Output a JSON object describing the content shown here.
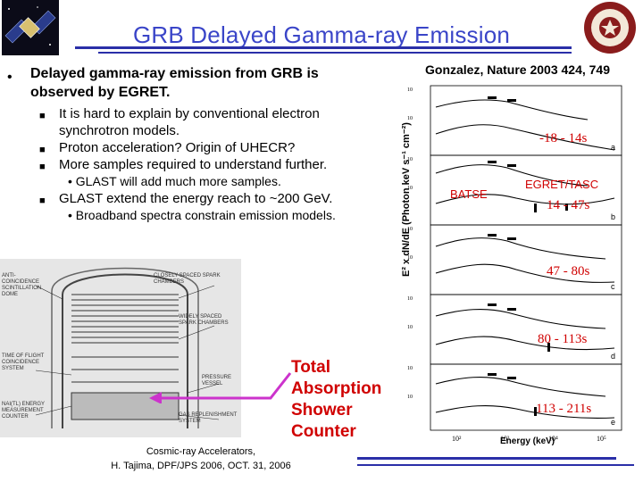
{
  "title": "GRB Delayed Gamma-ray Emission",
  "bullet_main": {
    "line1": "Delayed gamma-ray emission from GRB is",
    "line2": "observed by EGRET."
  },
  "sub_bullets": [
    {
      "line1": "It is hard to explain by conventional electron",
      "line2": "synchrotron models."
    },
    {
      "line1": "Proton acceleration? Origin of UHECR?"
    },
    {
      "line1": "More samples required to understand further."
    },
    {
      "line1": "GLAST extend the energy reach to ~200 GeV."
    }
  ],
  "sub_sub_bullets": [
    "GLAST will add much more samples.",
    "Broadband spectra constrain emission models."
  ],
  "citation": "Gonzalez, Nature 2003 424, 749",
  "spectra": {
    "ylabel": "E² x dN/dE (Photon keV s⁻¹ cm⁻²)",
    "xlabel": "Energy (keV)",
    "batse_label": "BATSE",
    "egret_label": "EGRET/TASC",
    "intervals": [
      "-18 - 14s",
      "14 - 47s",
      "47 - 80s",
      "80 - 113s",
      "113 - 211s"
    ],
    "panel_letters": [
      "a",
      "b",
      "c",
      "d",
      "e"
    ],
    "ytick": "10",
    "xticks": [
      "10²",
      "10³",
      "10⁴",
      "10⁵"
    ]
  },
  "detector": {
    "labels": [
      "Anti-coincidence scintillation dome",
      "Closely spaced spark chambers",
      "Widely spaced spark chambers",
      "Time of flight coincidence system",
      "Pressure vessel",
      "NaI(Tl) energy measurement counter",
      "Gas replenishment system"
    ]
  },
  "tasc_label": {
    "line1": "Total",
    "line2": "Absorption",
    "line3": "Shower",
    "line4": "Counter"
  },
  "footer": {
    "line1": "Cosmic-ray Accelerators,",
    "line2": "H. Tajima, DPF/JPS 2006, OCT. 31, 2006"
  },
  "colors": {
    "title": "#3a45c8",
    "rule": "#2a2fa8",
    "highlight": "#d00000",
    "arrow": "#cc33cc"
  }
}
